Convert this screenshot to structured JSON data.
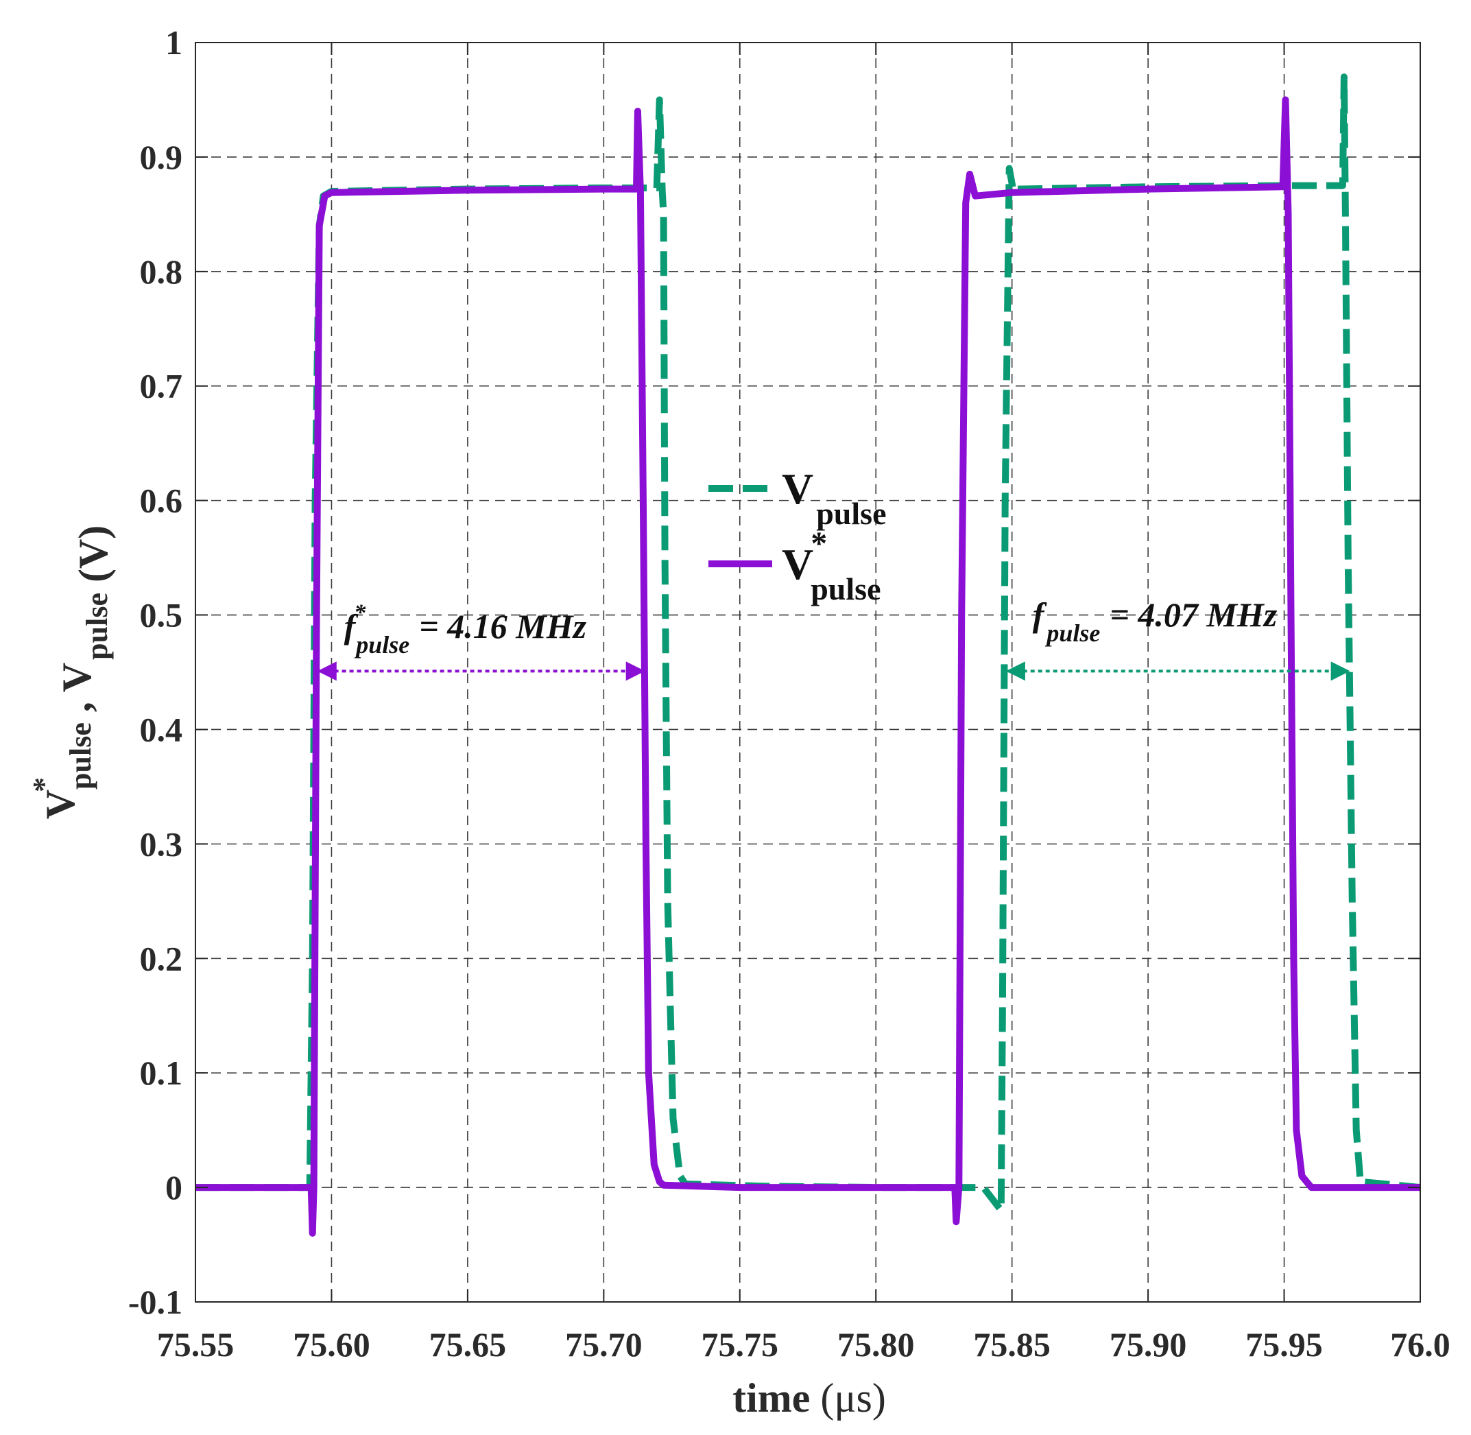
{
  "chart_data": {
    "type": "line",
    "xlabel": "time",
    "xlabel_unit": "(μs)",
    "ylabel_unit": "(V)",
    "xlim": [
      75.55,
      76.0
    ],
    "ylim": [
      -0.1,
      1.0
    ],
    "xticks": [
      75.55,
      75.6,
      75.65,
      75.7,
      75.75,
      75.8,
      75.85,
      75.9,
      75.95,
      76.0
    ],
    "xtick_labels": [
      "75.55",
      "75.60",
      "75.65",
      "75.70",
      "75.75",
      "75.80",
      "75.85",
      "75.90",
      "75.95",
      "76.0"
    ],
    "yticks": [
      -0.1,
      0,
      0.1,
      0.2,
      0.3,
      0.4,
      0.5,
      0.6,
      0.7,
      0.8,
      0.9,
      1
    ],
    "ytick_labels": [
      "-0.1",
      "0",
      "0.1",
      "0.2",
      "0.3",
      "0.4",
      "0.5",
      "0.6",
      "0.7",
      "0.8",
      "0.9",
      "1"
    ],
    "grid": true,
    "legend_position": "center",
    "series": [
      {
        "name": "V_pulse",
        "symbol": "V",
        "subscript": "pulse",
        "superscript": "",
        "color": "#0a9a74",
        "style": "dashed",
        "x": [
          75.55,
          75.592,
          75.593,
          75.594,
          75.5955,
          75.597,
          75.6,
          75.65,
          75.7,
          75.7195,
          75.7205,
          75.7215,
          75.722,
          75.7225,
          75.7235,
          75.7255,
          75.728,
          75.73,
          75.76,
          75.8,
          75.8395,
          75.846,
          75.8465,
          75.8475,
          75.849,
          75.8505,
          75.852,
          75.9,
          75.95,
          75.9715,
          75.972,
          75.9725,
          75.9735,
          75.975,
          75.9765,
          75.978,
          76.0
        ],
        "y": [
          0,
          0,
          0.2,
          0.6,
          0.84,
          0.866,
          0.87,
          0.872,
          0.873,
          0.873,
          0.95,
          0.87,
          0.85,
          0.55,
          0.25,
          0.06,
          0.01,
          0.003,
          0.001,
          0.0,
          0.0,
          -0.02,
          0.15,
          0.6,
          0.89,
          0.87,
          0.872,
          0.874,
          0.875,
          0.875,
          0.97,
          0.85,
          0.55,
          0.25,
          0.05,
          0.005,
          0.0
        ]
      },
      {
        "name": "V*_pulse",
        "symbol": "V",
        "subscript": "pulse",
        "superscript": "*",
        "color": "#8b0fd4",
        "style": "solid",
        "x": [
          75.55,
          75.5925,
          75.593,
          75.5935,
          75.5945,
          75.5955,
          75.5975,
          75.6,
          75.65,
          75.7,
          75.712,
          75.7125,
          75.7135,
          75.7145,
          75.7155,
          75.7165,
          75.7185,
          75.7205,
          75.722,
          75.75,
          75.8,
          75.829,
          75.8295,
          75.8305,
          75.8315,
          75.833,
          75.8345,
          75.8365,
          75.85,
          75.9,
          75.9495,
          75.9505,
          75.9515,
          75.9525,
          75.9535,
          75.9545,
          75.9565,
          75.96,
          76.0
        ],
        "y": [
          0,
          0,
          -0.04,
          0.0,
          0.5,
          0.84,
          0.866,
          0.869,
          0.871,
          0.872,
          0.872,
          0.94,
          0.87,
          0.6,
          0.3,
          0.1,
          0.02,
          0.005,
          0.002,
          0.0,
          0.0,
          0.0,
          -0.03,
          0.0,
          0.5,
          0.86,
          0.885,
          0.866,
          0.869,
          0.872,
          0.874,
          0.95,
          0.85,
          0.5,
          0.2,
          0.05,
          0.01,
          0.0,
          0.0
        ]
      }
    ],
    "annotations": [
      {
        "symbol": "f",
        "superscript": "*",
        "subscript": "pulse",
        "text": "= 4.16 MHz",
        "color": "#8b0fd4",
        "x_start": 75.5955,
        "x_end": 75.7145,
        "y_arrow": 0.451,
        "y_text": 0.48
      },
      {
        "symbol": "f",
        "superscript": "",
        "subscript": "pulse",
        "text": "= 4.07 MHz",
        "color": "#0a9a74",
        "x_start": 75.8485,
        "x_end": 75.9735,
        "y_arrow": 0.451,
        "y_text": 0.49
      }
    ],
    "ylabel_parts": [
      {
        "symbol": "V",
        "superscript": "*",
        "subscript": "pulse"
      },
      {
        "separator": ","
      },
      {
        "symbol": "V",
        "superscript": "",
        "subscript": "pulse"
      }
    ]
  }
}
